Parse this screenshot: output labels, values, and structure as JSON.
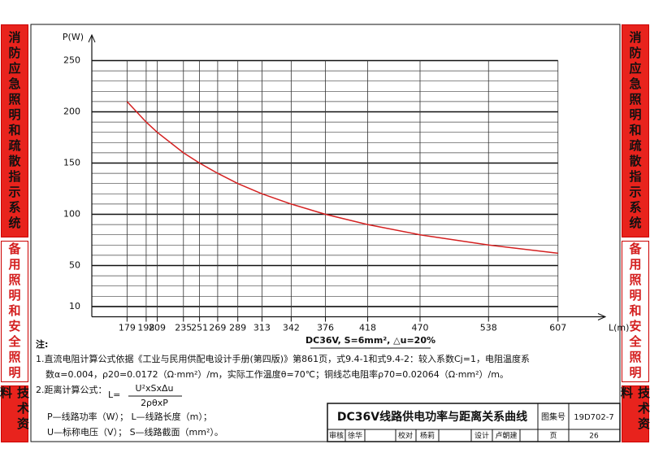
{
  "sidebar": {
    "left": [
      "消防应急照明和疏散指示系统",
      "备用照明和安全照明",
      "技术资料"
    ],
    "right": [
      "消防应急照明和疏散指示系统",
      "备用照明和安全照明",
      "技术资料"
    ]
  },
  "chart_data": {
    "type": "line",
    "ylabel": "P(W)",
    "xlabel": "L(m)",
    "caption": "DC36V, S=6mm², △u=20%",
    "series": [
      {
        "color": "#d42020",
        "x": [
          179,
          198,
          209,
          235,
          251,
          269,
          289,
          313,
          342,
          376,
          418,
          470,
          538,
          607
        ],
        "values": [
          210,
          190,
          180,
          160,
          150,
          140,
          130,
          120,
          110,
          100,
          90,
          80,
          70,
          62
        ]
      }
    ],
    "xlim": [
      144,
      654
    ],
    "ylim": [
      0,
      275
    ],
    "xticks": [
      179,
      198,
      209,
      235,
      251,
      269,
      289,
      313,
      342,
      376,
      418,
      470,
      538,
      607
    ],
    "yticks": [
      10,
      50,
      100,
      150,
      200,
      250
    ],
    "yminorticks": [
      20,
      30,
      40,
      60,
      70,
      80,
      90,
      110,
      120,
      130,
      140,
      160,
      170,
      180,
      190,
      210,
      220,
      230,
      240
    ],
    "grid": true
  },
  "notes": {
    "head": "注:",
    "line1": "1.直流电阻计算公式依据《工业与民用供配电设计手册(第四版)》第861页，式9.4-1和式9.4-2：较入系数Cj=1，电阻温度系",
    "line2": "数α=0.004，ρ20=0.0172（Ω·mm²）/m，实际工作温度θ=70℃；铜线芯电阻率ρ70=0.02064（Ω·mm²）/m。",
    "line3": "2.距离计算公式：",
    "formula_lhs": "L=",
    "numerator": "U²xSxΔu",
    "denominator": "2ρθxP",
    "line4": "P—线路功率（W）；    L—线路长度（m）；",
    "line5": "U—标称电压（V）；    S—线路截面（mm²）。"
  },
  "title_block": {
    "title": "DC36V线路供电功率与距离关系曲线",
    "atlas_label": "图集号",
    "atlas_no": "19D702-7",
    "row": [
      "审核",
      "徐华",
      "校对",
      "杨莉",
      "设计",
      "卢朝建",
      "页",
      "26"
    ]
  }
}
